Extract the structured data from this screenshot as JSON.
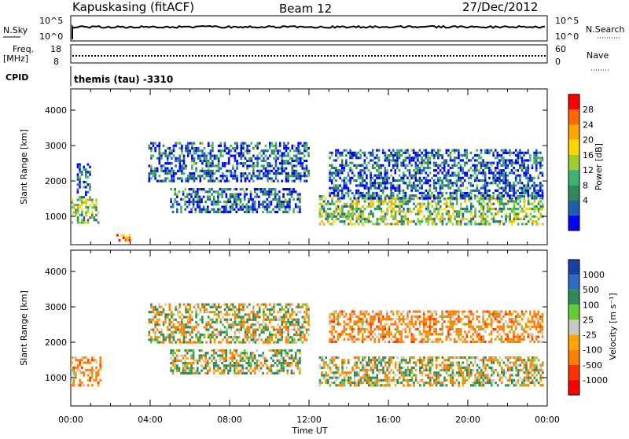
{
  "header": {
    "station": "Kapuskasing (fitACF)",
    "beam": "Beam 12",
    "date": "27/Dec/2012"
  },
  "aux": {
    "nsky_label": "N.Sky",
    "nsky_ticks": [
      "10^5",
      "10^0"
    ],
    "nsearch_label": "N.Search",
    "nsearch_ticks": [
      "10^5",
      "10^0"
    ],
    "freq_label": "Freq.",
    "freq_unit": "[MHz]",
    "freq_ticks": [
      "18",
      "8"
    ],
    "nave_label": "Nave",
    "nave_ticks": [
      "60",
      "0"
    ],
    "cpid_label": "CPID",
    "cpid_value": "themis (tau) -3310"
  },
  "axes": {
    "ylabel": "Slant Range [km]",
    "yticks": [
      "4000",
      "3000",
      "2000",
      "1000"
    ],
    "xticks": [
      "00:00",
      "04:00",
      "08:00",
      "12:00",
      "16:00",
      "20:00",
      "00:00"
    ],
    "xlabel": "Time UT"
  },
  "colorbars": {
    "power": {
      "label": "Power [dB]",
      "ticks": [
        "28",
        "24",
        "20",
        "16",
        "12",
        "8",
        "4"
      ],
      "colors": [
        "#ff0000",
        "#ff6a00",
        "#ffa500",
        "#ffd700",
        "#9acd32",
        "#3cb371",
        "#2e8b57",
        "#1f5fa8",
        "#0000ff"
      ]
    },
    "velocity": {
      "label": "Velocity [m s⁻¹]",
      "ticks": [
        "1000",
        "500",
        "100",
        "25",
        "-25",
        "-100",
        "-500",
        "-1000"
      ],
      "colors": [
        "#1a3fa8",
        "#2b6bc0",
        "#2e8b57",
        "#66cc33",
        "#c8c8c0",
        "#ffa500",
        "#ff7f00",
        "#ff3300",
        "#ff0000"
      ]
    }
  },
  "chart_data": [
    {
      "type": "heatmap",
      "title": "Power",
      "xlabel": "Time UT",
      "ylabel": "Slant Range [km]",
      "x_range": [
        "00:00",
        "24:00"
      ],
      "ylim": [
        200,
        4600
      ],
      "colorbar_range_db": [
        0,
        32
      ],
      "regions": [
        {
          "t_start": 0.0,
          "t_end": 1.4,
          "range_lo": 800,
          "range_hi": 1500,
          "value_db": 14
        },
        {
          "t_start": 0.3,
          "t_end": 1.0,
          "range_lo": 1500,
          "range_hi": 2500,
          "value_db": 6
        },
        {
          "t_start": 2.3,
          "t_end": 3.0,
          "range_lo": 350,
          "range_hi": 500,
          "value_db": 26
        },
        {
          "t_start": 3.9,
          "t_end": 12.0,
          "range_lo": 2000,
          "range_hi": 3100,
          "value_db": 6
        },
        {
          "t_start": 5.0,
          "t_end": 11.5,
          "range_lo": 1100,
          "range_hi": 1800,
          "value_db": 6
        },
        {
          "t_start": 12.5,
          "t_end": 23.8,
          "range_lo": 800,
          "range_hi": 1600,
          "value_db": 14
        },
        {
          "t_start": 13.0,
          "t_end": 23.8,
          "range_lo": 1500,
          "range_hi": 2900,
          "value_db": 6
        }
      ]
    },
    {
      "type": "heatmap",
      "title": "Velocity",
      "xlabel": "Time UT",
      "ylabel": "Slant Range [km]",
      "x_range": [
        "00:00",
        "24:00"
      ],
      "ylim": [
        200,
        4600
      ],
      "colorbar_range": [
        -1000,
        1000
      ],
      "regions": [
        {
          "t_start": 0.0,
          "t_end": 1.5,
          "range_lo": 800,
          "range_hi": 1600,
          "value": -150
        },
        {
          "t_start": 3.9,
          "t_end": 12.0,
          "range_lo": 2000,
          "range_hi": 3100,
          "value": 0
        },
        {
          "t_start": 5.0,
          "t_end": 11.5,
          "range_lo": 1100,
          "range_hi": 1800,
          "value": 60
        },
        {
          "t_start": 12.5,
          "t_end": 23.8,
          "range_lo": 800,
          "range_hi": 1600,
          "value": 0
        },
        {
          "t_start": 13.0,
          "t_end": 23.8,
          "range_lo": 2000,
          "range_hi": 2900,
          "value": -150
        }
      ]
    }
  ]
}
